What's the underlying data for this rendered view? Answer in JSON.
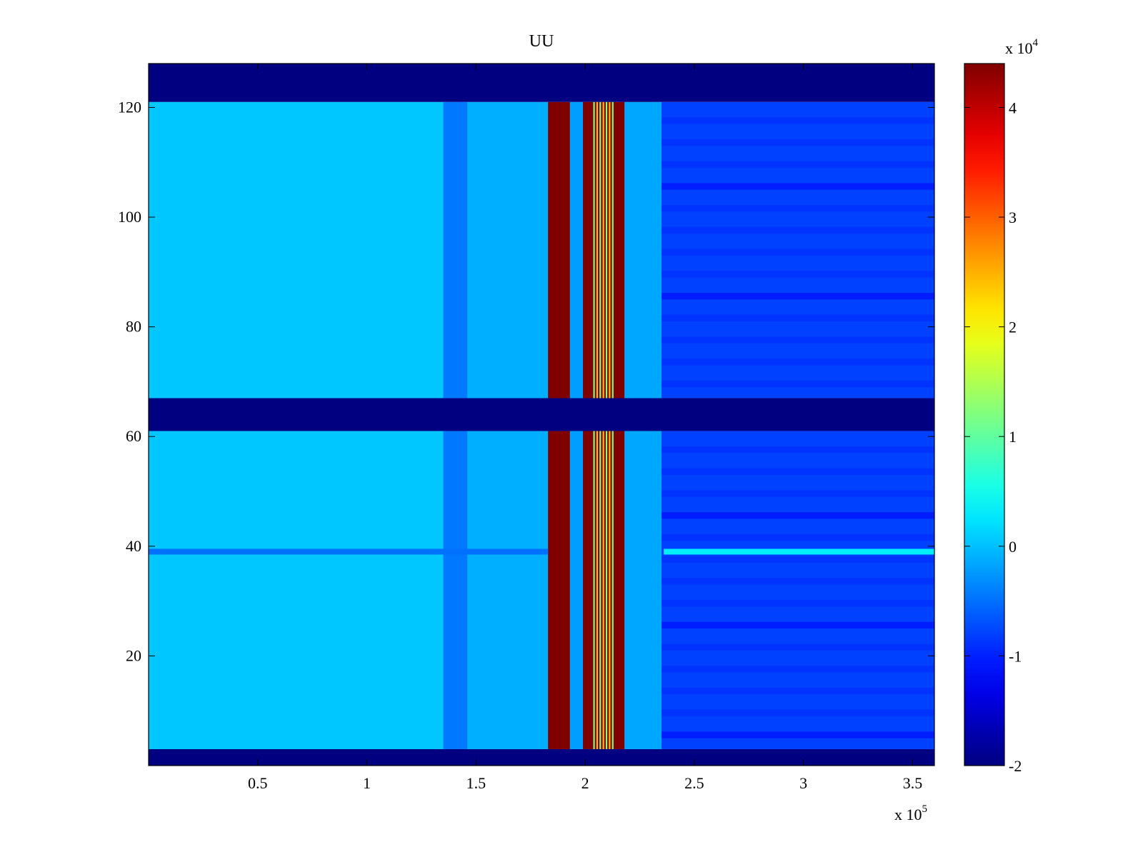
{
  "chart_data": {
    "type": "heatmap",
    "title": "UU",
    "xlabel": "",
    "ylabel": "",
    "x_exponent_label": {
      "prefix": "x 10",
      "power": "5"
    },
    "colorbar_exponent_label": {
      "prefix": "x 10",
      "power": "4"
    },
    "xlim": [
      0.0,
      3.6
    ],
    "ylim": [
      0,
      128
    ],
    "x_ticks": [
      0.5,
      1.0,
      1.5,
      2.0,
      2.5,
      3.0,
      3.5
    ],
    "x_tick_labels": [
      "0.5",
      "1",
      "1.5",
      "2",
      "2.5",
      "3",
      "3.5"
    ],
    "y_ticks": [
      20,
      40,
      60,
      80,
      100,
      120
    ],
    "y_tick_labels": [
      "20",
      "40",
      "60",
      "80",
      "100",
      "120"
    ],
    "colorbar": {
      "range": [
        -2,
        4.4
      ],
      "ticks": [
        -2,
        -1,
        0,
        1,
        2,
        3,
        4
      ],
      "tick_labels": [
        "-2",
        "-1",
        "0",
        "1",
        "2",
        "3",
        "4"
      ],
      "colormap": "jet"
    },
    "row_bands": [
      {
        "y_range": [
          0,
          3
        ],
        "value": -2.0
      },
      {
        "y_range": [
          3,
          61
        ],
        "value": "data"
      },
      {
        "y_range": [
          61,
          67
        ],
        "value": -2.0
      },
      {
        "y_range": [
          67,
          121
        ],
        "value": "data"
      },
      {
        "y_range": [
          121,
          128
        ],
        "value": -2.0
      }
    ],
    "column_segments": [
      {
        "x_range": [
          0.0,
          1.35
        ],
        "value": 0.05
      },
      {
        "x_range": [
          1.35,
          1.46
        ],
        "value": -0.45
      },
      {
        "x_range": [
          1.46,
          1.83
        ],
        "value": -0.1
      },
      {
        "x_range": [
          1.83,
          1.93
        ],
        "value": 4.4
      },
      {
        "x_range": [
          1.93,
          1.99
        ],
        "value": -0.2
      },
      {
        "x_range": [
          1.99,
          2.03
        ],
        "value": 4.4
      },
      {
        "x_range": [
          2.03,
          2.13
        ],
        "value": "oscillating"
      },
      {
        "x_range": [
          2.13,
          2.18
        ],
        "value": 4.4
      },
      {
        "x_range": [
          2.18,
          2.35
        ],
        "value": -0.15
      },
      {
        "x_range": [
          2.35,
          3.6
        ],
        "value": -0.8
      }
    ],
    "anomaly_row": {
      "y": 39,
      "left_value": -0.5,
      "right_value": 0.3,
      "split_x": 2.36
    }
  }
}
